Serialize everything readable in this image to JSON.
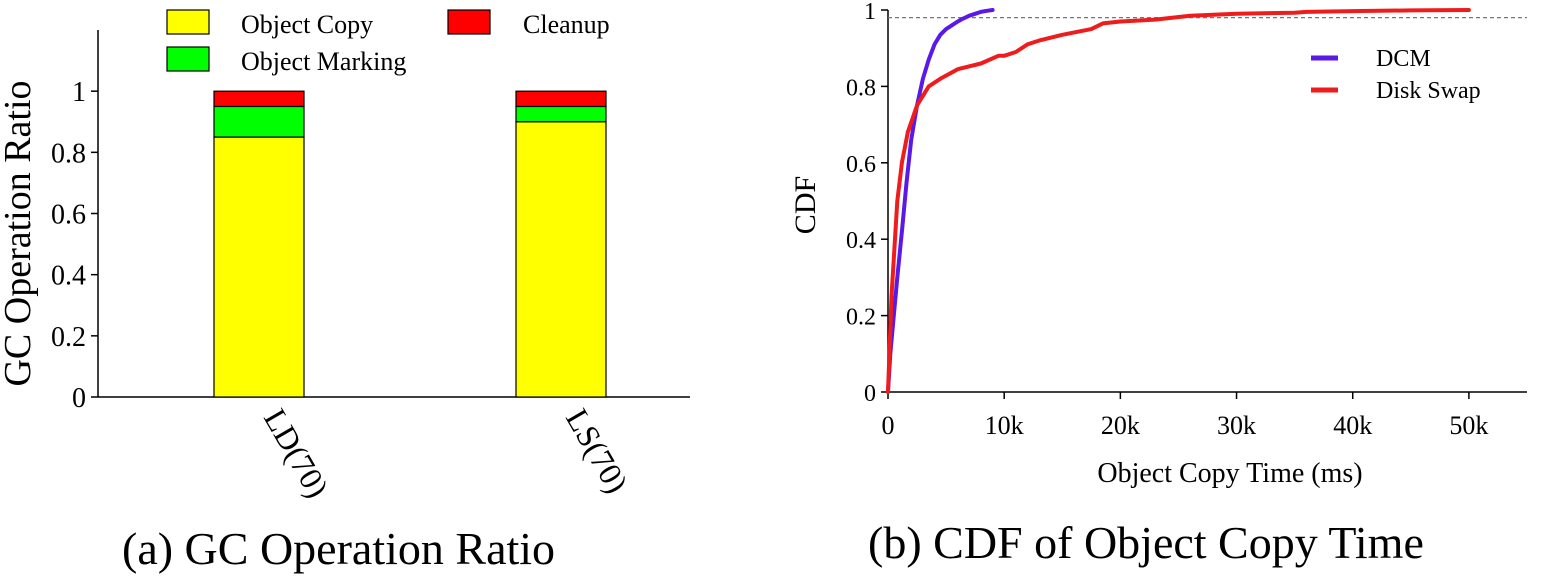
{
  "captions": {
    "left": "(a) GC Operation Ratio",
    "right": "(b) CDF of Object Copy Time"
  },
  "chart_data": [
    {
      "type": "bar",
      "stacked": true,
      "categories": [
        "LD(70)",
        "LS(70)"
      ],
      "series": [
        {
          "name": "Object Copy",
          "color": "#ffff00",
          "values": [
            0.85,
            0.9
          ]
        },
        {
          "name": "Object Marking",
          "color": "#00ff00",
          "values": [
            0.1,
            0.05
          ]
        },
        {
          "name": "Cleanup",
          "color": "#ff0000",
          "values": [
            0.05,
            0.05
          ]
        }
      ],
      "title": "",
      "xlabel": "",
      "ylabel": "GC Operation Ratio",
      "ylim": [
        0,
        1.2
      ],
      "yticks": [
        0,
        0.2,
        0.4,
        0.6,
        0.8,
        1
      ],
      "ytick_labels": [
        "0",
        "0.2",
        "0.4",
        "0.6",
        "0.8",
        "1"
      ],
      "grid": false,
      "legend": "top"
    },
    {
      "type": "line",
      "title": "",
      "xlabel": "Object Copy Time (ms)",
      "ylabel": "CDF",
      "xlim": [
        0,
        55000
      ],
      "ylim": [
        0,
        1
      ],
      "xticks": [
        0,
        10000,
        20000,
        30000,
        40000,
        50000
      ],
      "xtick_labels": [
        "0",
        "10k",
        "20k",
        "30k",
        "40k",
        "50k"
      ],
      "yticks": [
        0,
        0.2,
        0.4,
        0.6,
        0.8,
        1
      ],
      "ytick_labels": [
        "0",
        "0.2",
        "0.4",
        "0.6",
        "0.8",
        "1"
      ],
      "reference_line_y": 0.98,
      "grid": false,
      "legend": "top-right",
      "series": [
        {
          "name": "DCM",
          "color": "#5a19e6",
          "x": [
            0,
            200,
            500,
            800,
            1200,
            1600,
            2000,
            2500,
            3000,
            3500,
            4000,
            4500,
            5000,
            5500,
            6000,
            6500,
            7000,
            7500,
            8000,
            8500,
            9000
          ],
          "y": [
            0,
            0.1,
            0.2,
            0.3,
            0.42,
            0.55,
            0.66,
            0.75,
            0.82,
            0.87,
            0.91,
            0.935,
            0.95,
            0.96,
            0.97,
            0.978,
            0.985,
            0.99,
            0.995,
            0.998,
            1.0
          ]
        },
        {
          "name": "Disk Swap",
          "color": "#ee1c1c",
          "x": [
            0,
            300,
            800,
            1200,
            1700,
            2500,
            3500,
            4500,
            6000,
            8000,
            9500,
            10000,
            11000,
            12000,
            13000,
            15000,
            17500,
            18500,
            20000,
            23000,
            26000,
            30000,
            35000,
            36000,
            40000,
            45000,
            50000
          ],
          "y": [
            0,
            0.25,
            0.5,
            0.6,
            0.68,
            0.75,
            0.8,
            0.82,
            0.845,
            0.86,
            0.88,
            0.88,
            0.89,
            0.91,
            0.92,
            0.935,
            0.95,
            0.965,
            0.97,
            0.975,
            0.985,
            0.99,
            0.993,
            0.995,
            0.997,
            0.999,
            1.0
          ]
        }
      ]
    }
  ]
}
